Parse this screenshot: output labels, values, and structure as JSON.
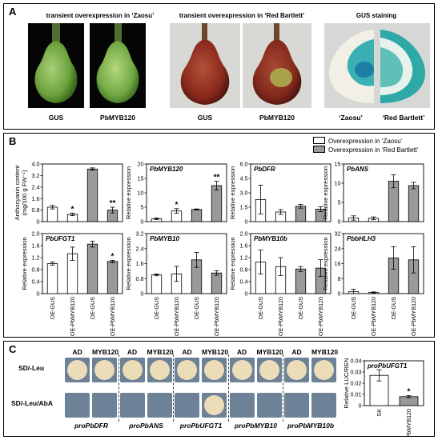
{
  "panel_a": {
    "label": "A",
    "headings": {
      "zaosu": "transient overexpression in ‘Zaosu’",
      "red_bartlett": "transient overexpression in ‘Red Bartlett’",
      "gus_staining": "GUS staining"
    },
    "photo_captions": [
      "GUS",
      "PbMYB120",
      "GUS",
      "PbMYB120",
      "‘Zaosu’",
      "‘Red Bartlett’"
    ]
  },
  "panel_b": {
    "label": "B",
    "legend": [
      "Overexpression in ‘Zaosu’",
      "Overexpression in ‘Red Bartlett’"
    ],
    "fill_colors": {
      "zaosu": "#ffffff",
      "red_bartlett": "#9a9a9a"
    }
  },
  "panel_c": {
    "label": "C",
    "rows": [
      "SD/-Leu",
      "SD/-Leu/AbA"
    ],
    "column_labels": [
      "AD",
      "MYB120"
    ],
    "promoters": [
      "proPbDFR",
      "proPbANS",
      "proPbUFGT1",
      "proPbMYB10",
      "proPbMYB10b"
    ],
    "colony_color": "#ecdcb8",
    "plate_color": "#6d8296"
  },
  "chart_data": [
    {
      "type": "bar",
      "id": "anthocyanin",
      "ylabel": "Anthocyanin content\n(mg/100 g FW⁻¹)",
      "ylim": [
        0,
        4.0
      ],
      "yticks": [
        "0",
        "0.8",
        "1.6",
        "2.4",
        "3.2",
        "4.0"
      ],
      "categories": [
        "OE-GUS",
        "OE-PbMYB120",
        "OE-GUS",
        "OE-PbMYB120"
      ],
      "series": [
        {
          "name": "Overexpression in ‘Zaosu’",
          "values": [
            1.0,
            0.5,
            null,
            null
          ],
          "errors": [
            0.12,
            0.08,
            null,
            null
          ]
        },
        {
          "name": "Overexpression in ‘Red Bartlett’",
          "values": [
            null,
            null,
            3.65,
            0.8
          ],
          "errors": [
            null,
            null,
            0.08,
            0.2
          ]
        }
      ],
      "significance": [
        "",
        "*",
        "",
        "**"
      ]
    },
    {
      "type": "bar",
      "id": "pbmyb120",
      "title": "PbMYB120",
      "ylabel": "Relative expression",
      "ylim": [
        0,
        20
      ],
      "yticks": [
        "0",
        "5",
        "10",
        "15",
        "20"
      ],
      "categories": [
        "OE-GUS",
        "OE-PbMYB120",
        "OE-GUS",
        "OE-PbMYB120"
      ],
      "series": [
        {
          "name": "Overexpression in ‘Zaosu’",
          "values": [
            1.0,
            3.7,
            null,
            null
          ],
          "errors": [
            0.3,
            0.8,
            null,
            null
          ]
        },
        {
          "name": "Overexpression in ‘Red Bartlett’",
          "values": [
            null,
            null,
            4.2,
            12.5
          ],
          "errors": [
            null,
            null,
            0.2,
            1.5
          ]
        }
      ],
      "significance": [
        "",
        "*",
        "",
        "**"
      ]
    },
    {
      "type": "bar",
      "id": "pbdfr",
      "title": "PbDFR",
      "ylabel": "Relative expression",
      "ylim": [
        0,
        6.0
      ],
      "yticks": [
        "0",
        "1.5",
        "3.0",
        "4.5",
        "6.0"
      ],
      "categories": [
        "OE-GUS",
        "OE-PbMYB120",
        "OE-GUS",
        "OE-PbMYB120"
      ],
      "series": [
        {
          "name": "Overexpression in ‘Zaosu’",
          "values": [
            2.3,
            1.0,
            null,
            null
          ],
          "errors": [
            1.5,
            0.25,
            null,
            null
          ]
        },
        {
          "name": "Overexpression in ‘Red Bartlett’",
          "values": [
            null,
            null,
            1.6,
            1.3
          ],
          "errors": [
            null,
            null,
            0.2,
            0.25
          ]
        }
      ],
      "significance": [
        "",
        "",
        "",
        ""
      ]
    },
    {
      "type": "bar",
      "id": "pbans",
      "title": "PbANS",
      "ylabel": "Relative expression",
      "ylim": [
        0,
        16
      ],
      "yticks": [
        "0",
        "5",
        "10",
        "15"
      ],
      "categories": [
        "OE-GUS",
        "OE-PbMYB120",
        "OE-GUS",
        "OE-PbMYB120"
      ],
      "series": [
        {
          "name": "Overexpression in ‘Zaosu’",
          "values": [
            1.0,
            0.9,
            null,
            null
          ],
          "errors": [
            0.6,
            0.4,
            null,
            null
          ]
        },
        {
          "name": "Overexpression in ‘Red Bartlett’",
          "values": [
            null,
            null,
            11.2,
            10.0
          ],
          "errors": [
            null,
            null,
            1.8,
            0.9
          ]
        }
      ],
      "significance": [
        "",
        "",
        "",
        ""
      ]
    },
    {
      "type": "bar",
      "id": "pbufgt1",
      "title": "PbUFGT1",
      "ylabel": "Relative expression",
      "ylim": [
        0,
        2.0
      ],
      "yticks": [
        "0",
        "0.4",
        "0.8",
        "1.2",
        "1.6",
        "2.0"
      ],
      "categories": [
        "OE-GUS",
        "OE-PbMYB120",
        "OE-GUS",
        "OE-PbMYB120"
      ],
      "series": [
        {
          "name": "Overexpression in ‘Zaosu’",
          "values": [
            1.0,
            1.33,
            null,
            null
          ],
          "errors": [
            0.05,
            0.22,
            null,
            null
          ]
        },
        {
          "name": "Overexpression in ‘Red Bartlett’",
          "values": [
            null,
            null,
            1.65,
            1.07
          ],
          "errors": [
            null,
            null,
            0.1,
            0.04
          ]
        }
      ],
      "significance": [
        "",
        "",
        "",
        "*"
      ]
    },
    {
      "type": "bar",
      "id": "pbmyb10",
      "title": "PbMYB10",
      "ylabel": "Relative expression",
      "ylim": [
        0,
        3.2
      ],
      "yticks": [
        "0",
        "0.8",
        "1.6",
        "2.4",
        "3.2"
      ],
      "categories": [
        "OE-GUS",
        "OE-PbMYB120",
        "OE-GUS",
        "OE-PbMYB120"
      ],
      "series": [
        {
          "name": "Overexpression in ‘Zaosu’",
          "values": [
            1.0,
            1.05,
            null,
            null
          ],
          "errors": [
            0.05,
            0.4,
            null,
            null
          ]
        },
        {
          "name": "Overexpression in ‘Red Bartlett’",
          "values": [
            null,
            null,
            1.8,
            1.1
          ],
          "errors": [
            null,
            null,
            0.4,
            0.12
          ]
        }
      ],
      "significance": [
        "",
        "",
        "",
        ""
      ]
    },
    {
      "type": "bar",
      "id": "pbmyb10b",
      "title": "PbMYB10b",
      "ylabel": "Relative expression",
      "ylim": [
        0,
        2.0
      ],
      "yticks": [
        "0",
        "0.4",
        "0.8",
        "1.2",
        "1.6",
        "2.0"
      ],
      "categories": [
        "OE-GUS",
        "OE-PbMYB120",
        "OE-GUS",
        "OE-PbMYB120"
      ],
      "series": [
        {
          "name": "Overexpression in ‘Zaosu’",
          "values": [
            1.05,
            0.9,
            null,
            null
          ],
          "errors": [
            0.4,
            0.3,
            null,
            null
          ]
        },
        {
          "name": "Overexpression in ‘Red Bartlett’",
          "values": [
            null,
            null,
            0.82,
            0.85
          ],
          "errors": [
            null,
            null,
            0.08,
            0.28
          ]
        }
      ],
      "significance": [
        "",
        "",
        "",
        ""
      ]
    },
    {
      "type": "bar",
      "id": "pbbhlh3",
      "title": "PbbHLH3",
      "ylabel": "Relative expression",
      "ylim": [
        0,
        32
      ],
      "yticks": [
        "0",
        "8",
        "16",
        "24",
        "32"
      ],
      "categories": [
        "OE-GUS",
        "OE-PbMYB120",
        "OE-GUS",
        "OE-PbMYB120"
      ],
      "series": [
        {
          "name": "Overexpression in ‘Zaosu’",
          "values": [
            1.0,
            0.6,
            null,
            null
          ],
          "errors": [
            1.3,
            0.3,
            null,
            null
          ]
        },
        {
          "name": "Overexpression in ‘Red Bartlett’",
          "values": [
            null,
            null,
            19.0,
            18.0
          ],
          "errors": [
            null,
            null,
            6.0,
            7.0
          ]
        }
      ],
      "significance": [
        "",
        "",
        "",
        ""
      ]
    },
    {
      "type": "bar",
      "id": "luc_ren",
      "title": "proPbUFGT1",
      "ylabel": "Relative LUC/REN",
      "ylim": [
        0,
        0.04
      ],
      "yticks": [
        "0",
        "0.01",
        "0.02",
        "0.03",
        "0.04"
      ],
      "categories": [
        "SK",
        "PbMYB120"
      ],
      "series": [
        {
          "name": "",
          "values": [
            0.027,
            0.008
          ],
          "errors": [
            0.005,
            0.001
          ]
        }
      ],
      "fill_colors": [
        "#ffffff",
        "#9a9a9a"
      ],
      "significance": [
        "",
        "*"
      ]
    }
  ]
}
